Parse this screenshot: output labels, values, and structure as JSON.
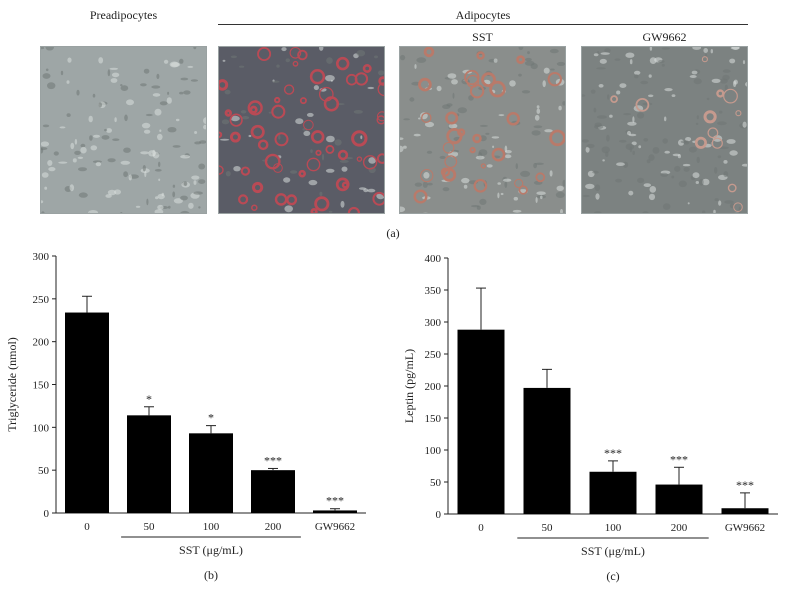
{
  "micrographs": {
    "preadipocytes_label": "Preadipocytes",
    "adipocytes_label": "Adipocytes",
    "sst_label": "SST",
    "gw_label": "GW9662",
    "panel_label": "(a)",
    "tints": [
      "#9ea6a6",
      "#5a5c66",
      "#8a8e8c",
      "#7c8281"
    ],
    "cell_colors": [
      "#dfe4f2",
      "#b94a55",
      "#b97a6a",
      "#c59a8e"
    ]
  },
  "chart_data": [
    {
      "type": "bar",
      "panel_label": "(b)",
      "ylabel": "Triglyceride (nmol)",
      "ylim": [
        0,
        300
      ],
      "yticks": [
        0,
        50,
        100,
        150,
        200,
        250,
        300
      ],
      "categories": [
        "0",
        "50",
        "100",
        "200",
        "GW9662"
      ],
      "values": [
        234,
        114,
        93,
        50,
        3
      ],
      "errors": [
        19,
        10,
        9,
        2,
        2
      ],
      "significance": [
        "",
        "*",
        "*",
        "***",
        "***"
      ],
      "group_label": "SST (μg/mL)",
      "group_span": [
        "50",
        "200"
      ],
      "bar_color": "#000000"
    },
    {
      "type": "bar",
      "panel_label": "(c)",
      "ylabel": "Leptin (pg/mL)",
      "ylim": [
        0,
        400
      ],
      "yticks": [
        0,
        50,
        100,
        150,
        200,
        250,
        300,
        350,
        400
      ],
      "categories": [
        "0",
        "50",
        "100",
        "200",
        "GW9662"
      ],
      "values": [
        288,
        197,
        66,
        46,
        9
      ],
      "errors": [
        65,
        29,
        17,
        27,
        24
      ],
      "significance": [
        "",
        "",
        "***",
        "***",
        "***"
      ],
      "group_label": "SST (μg/mL)",
      "group_span": [
        "50",
        "200"
      ],
      "bar_color": "#000000"
    }
  ]
}
